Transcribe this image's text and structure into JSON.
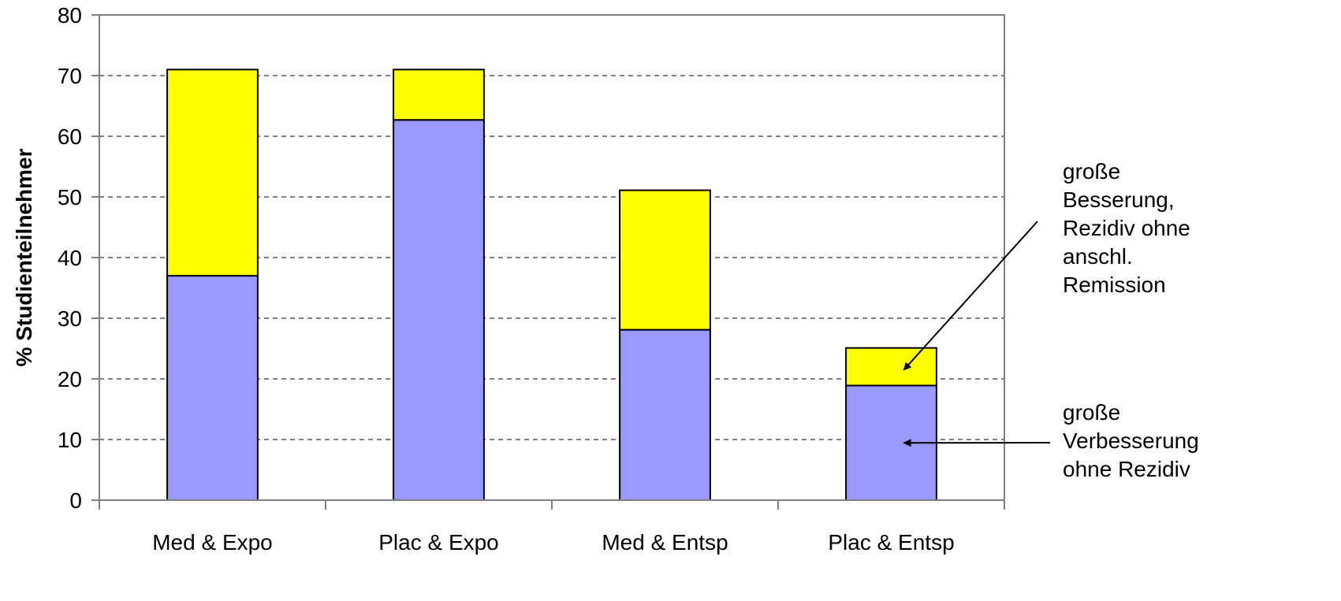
{
  "chart_data": {
    "type": "bar",
    "stacked": true,
    "categories": [
      "Med & Expo",
      "Plac & Expo",
      "Med & Entsp",
      "Plac & Entsp"
    ],
    "series": [
      {
        "values": [
          37,
          62.7,
          28.1,
          18.9
        ],
        "color": "#9999ff"
      },
      {
        "values": [
          34,
          8.3,
          23,
          6.2
        ],
        "color": "#ffff00"
      }
    ],
    "ylabel": "% Studienteilnehmer",
    "xlabel": "",
    "ylim": [
      0,
      80
    ],
    "yticks": [
      0,
      10,
      20,
      30,
      40,
      50,
      60,
      70,
      80
    ],
    "grid": "horizontal-dashed",
    "annotations": [
      {
        "lines": [
          "große",
          "Besserung,",
          "Rezidiv ohne",
          "anschl.",
          "Remission"
        ],
        "points_to": {
          "category": 3,
          "series": 1
        }
      },
      {
        "lines": [
          "große",
          "Verbesserung",
          "ohne Rezidiv"
        ],
        "points_to": {
          "category": 3,
          "series": 0
        }
      }
    ]
  }
}
